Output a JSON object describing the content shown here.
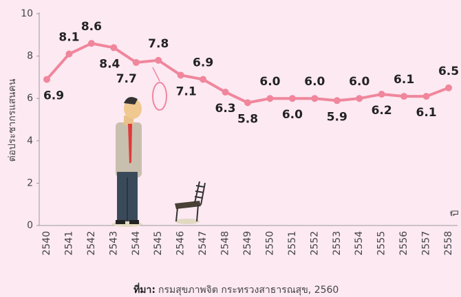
{
  "chart_data": {
    "type": "line",
    "y_label": "ต่อประชากรแสนคน",
    "x_label": "ปี",
    "source_label": "ที่มา:",
    "source_text": "กรมสุขภาพจิต กระทรวงสาธารณสุข, 2560",
    "categories": [
      "2540",
      "2541",
      "2542",
      "2543",
      "2544",
      "2545",
      "2546",
      "2547",
      "2548",
      "2549",
      "2550",
      "2551",
      "2552",
      "2553",
      "2554",
      "2555",
      "2556",
      "2557",
      "2558"
    ],
    "values": [
      6.9,
      8.1,
      8.6,
      8.4,
      7.7,
      7.8,
      7.1,
      6.9,
      6.3,
      5.8,
      6.0,
      6.0,
      6.0,
      5.9,
      6.0,
      6.2,
      6.1,
      6.1,
      6.5
    ],
    "value_labels": [
      "6.9",
      "8.1",
      "8.6",
      "8.4",
      "7.7",
      "7.8",
      "7.1",
      "6.9",
      "6.3",
      "5.8",
      "6.0",
      "6.0",
      "6.0",
      "5.9",
      "6.0",
      "6.2",
      "6.1",
      "6.1",
      "6.5"
    ],
    "color": "#f0869c",
    "ylim": [
      0,
      10
    ],
    "yticks": [
      0,
      2,
      4,
      6,
      8,
      10
    ]
  }
}
